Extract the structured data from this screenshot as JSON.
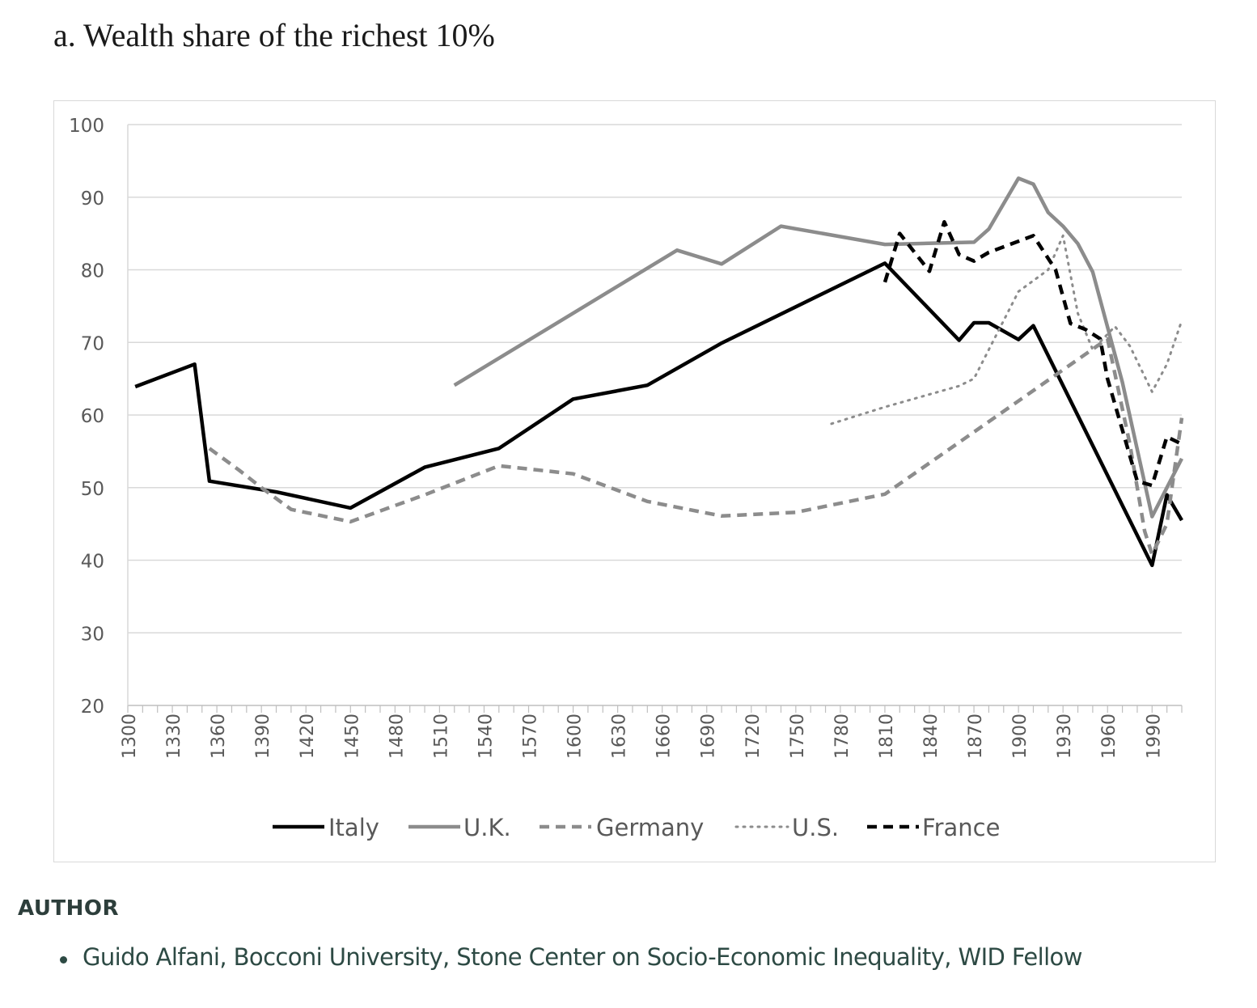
{
  "title": "a. Wealth share of the richest 10%",
  "chart_data": {
    "type": "line",
    "title": "a. Wealth share of the richest 10%",
    "xlabel": "",
    "ylabel": "",
    "xlim": [
      1300,
      2010
    ],
    "ylim": [
      20,
      100
    ],
    "y_ticks": [
      20,
      30,
      40,
      50,
      60,
      70,
      80,
      90,
      100
    ],
    "x_tick_labels": [
      1300,
      1330,
      1360,
      1390,
      1420,
      1450,
      1480,
      1510,
      1540,
      1570,
      1600,
      1630,
      1660,
      1690,
      1720,
      1750,
      1780,
      1810,
      1840,
      1870,
      1900,
      1930,
      1960,
      1990
    ],
    "grid": true,
    "legend_position": "bottom",
    "series": [
      {
        "name": "Italy",
        "color": "#000000",
        "style": "solid",
        "points": [
          [
            1305,
            63.9
          ],
          [
            1345,
            67.0
          ],
          [
            1355,
            50.9
          ],
          [
            1400,
            49.4
          ],
          [
            1450,
            47.2
          ],
          [
            1500,
            52.8
          ],
          [
            1550,
            55.4
          ],
          [
            1600,
            62.2
          ],
          [
            1650,
            64.1
          ],
          [
            1700,
            69.9
          ],
          [
            1810,
            80.9
          ],
          [
            1860,
            70.3
          ],
          [
            1870,
            72.7
          ],
          [
            1880,
            72.7
          ],
          [
            1900,
            70.4
          ],
          [
            1910,
            72.3
          ],
          [
            1990,
            39.3
          ],
          [
            2000,
            49.0
          ],
          [
            2010,
            45.5
          ]
        ]
      },
      {
        "name": "U.K.",
        "color": "#8c8c8c",
        "style": "solid",
        "points": [
          [
            1520,
            64.1
          ],
          [
            1670,
            82.7
          ],
          [
            1700,
            80.8
          ],
          [
            1740,
            86.0
          ],
          [
            1810,
            83.5
          ],
          [
            1870,
            83.8
          ],
          [
            1880,
            85.6
          ],
          [
            1900,
            92.6
          ],
          [
            1910,
            91.8
          ],
          [
            1920,
            87.9
          ],
          [
            1930,
            86.0
          ],
          [
            1940,
            83.6
          ],
          [
            1950,
            79.7
          ],
          [
            1970,
            64.5
          ],
          [
            1990,
            46.0
          ],
          [
            2000,
            50.0
          ],
          [
            2010,
            54.0
          ]
        ]
      },
      {
        "name": "Germany",
        "color": "#8c8c8c",
        "style": "dashed",
        "points": [
          [
            1355,
            55.4
          ],
          [
            1375,
            52.4
          ],
          [
            1390,
            50.0
          ],
          [
            1410,
            47.0
          ],
          [
            1450,
            45.3
          ],
          [
            1500,
            49.0
          ],
          [
            1550,
            53.0
          ],
          [
            1600,
            51.9
          ],
          [
            1650,
            48.1
          ],
          [
            1700,
            46.1
          ],
          [
            1750,
            46.6
          ],
          [
            1810,
            49.1
          ],
          [
            1960,
            70.5
          ],
          [
            1975,
            56.0
          ],
          [
            1985,
            44.0
          ],
          [
            1990,
            40.8
          ],
          [
            2000,
            45.0
          ],
          [
            2010,
            59.6
          ]
        ]
      },
      {
        "name": "U.S.",
        "color": "#8c8c8c",
        "style": "dotted",
        "points": [
          [
            1774,
            58.8
          ],
          [
            1810,
            61.1
          ],
          [
            1860,
            64.0
          ],
          [
            1870,
            65.0
          ],
          [
            1900,
            77.0
          ],
          [
            1920,
            80.0
          ],
          [
            1930,
            84.7
          ],
          [
            1940,
            74.0
          ],
          [
            1950,
            69.0
          ],
          [
            1965,
            72.2
          ],
          [
            1975,
            69.5
          ],
          [
            1990,
            63.2
          ],
          [
            2000,
            67.0
          ],
          [
            2010,
            73.0
          ]
        ]
      },
      {
        "name": "France",
        "color": "#000000",
        "style": "dashed",
        "points": [
          [
            1810,
            78.3
          ],
          [
            1820,
            85.0
          ],
          [
            1840,
            79.8
          ],
          [
            1850,
            86.6
          ],
          [
            1860,
            82.1
          ],
          [
            1870,
            81.2
          ],
          [
            1880,
            82.4
          ],
          [
            1910,
            84.7
          ],
          [
            1925,
            80.0
          ],
          [
            1935,
            72.6
          ],
          [
            1945,
            71.8
          ],
          [
            1955,
            70.5
          ],
          [
            1960,
            65.0
          ],
          [
            1980,
            50.9
          ],
          [
            1990,
            50.3
          ],
          [
            2000,
            57.0
          ],
          [
            2010,
            56.0
          ]
        ]
      }
    ]
  },
  "author": {
    "heading": "AUTHOR",
    "items": [
      "Guido Alfani, Bocconi University, Stone Center on Socio-Economic Inequality, WID Fellow"
    ]
  }
}
